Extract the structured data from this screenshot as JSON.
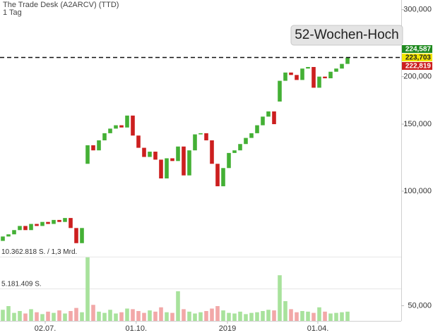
{
  "chart_data": {
    "type": "candlestick",
    "title": "The Trade Desk (A2ARCV) (TTD)",
    "subtitle": "1 Tag",
    "log_scale": true,
    "ylim": [
      45.6,
      318
    ],
    "yticks": [
      {
        "value": 50,
        "label": "50,000"
      },
      {
        "value": 100,
        "label": "100,000"
      },
      {
        "value": 150,
        "label": "150,000"
      },
      {
        "value": 200,
        "label": "200,000"
      },
      {
        "value": 300,
        "label": "300,000"
      }
    ],
    "xlim": [
      0,
      71
    ],
    "xticks": [
      {
        "value": 8,
        "label": "02.07."
      },
      {
        "value": 24.1,
        "label": "01.10."
      },
      {
        "value": 40.25,
        "label": "2019"
      },
      {
        "value": 56.25,
        "label": "01.04."
      }
    ],
    "up_color": "#44b035",
    "down_color": "#cc1f1f",
    "open": [
      74,
      76,
      77,
      79,
      81,
      79,
      82,
      81,
      83,
      82,
      84,
      83,
      85,
      80,
      73,
      118,
      132,
      128,
      136,
      142,
      146,
      149,
      147,
      158,
      140,
      130,
      123,
      127,
      121,
      108,
      122,
      120,
      131,
      110,
      128,
      141,
      142,
      136,
      118,
      103,
      115,
      126,
      128,
      133,
      138,
      142,
      149,
      157,
      162,
      172,
      195,
      205,
      202,
      196,
      210,
      212,
      187,
      200,
      198,
      206,
      210,
      216
    ],
    "close": [
      76,
      77,
      79,
      81,
      79,
      82,
      81,
      83,
      82,
      84,
      83,
      85,
      80,
      73,
      80,
      132,
      128,
      136,
      142,
      146,
      149,
      147,
      158,
      140,
      130,
      123,
      127,
      121,
      108,
      122,
      120,
      131,
      110,
      128,
      141,
      142,
      136,
      118,
      103,
      115,
      126,
      128,
      133,
      138,
      142,
      149,
      157,
      162,
      150,
      195,
      205,
      202,
      196,
      210,
      212,
      187,
      200,
      198,
      206,
      210,
      216,
      224.5
    ],
    "volume": {
      "axis": "y2",
      "up_color": "#a8e29c",
      "down_color": "#f2a8a8",
      "values": [
        1800000,
        2400000,
        1300000,
        1600000,
        1200000,
        1900000,
        1400000,
        1100000,
        1500000,
        1300000,
        1700000,
        1200000,
        1600000,
        2100000,
        1400000,
        10300000,
        2600000,
        1500000,
        1300000,
        1800000,
        1200000,
        1400000,
        2000000,
        1900000,
        1600000,
        1300000,
        1700000,
        1500000,
        2200000,
        1400000,
        1300000,
        4800000,
        1900000,
        1500000,
        1200000,
        1400000,
        1600000,
        2000000,
        2400000,
        1700000,
        1300000,
        1200000,
        1500000,
        1100000,
        1300000,
        1400000,
        1600000,
        1800000,
        1700000,
        7400000,
        3200000,
        1900000,
        1400000,
        1600000,
        1500000,
        1300000,
        2200000,
        1500000,
        1200000,
        1300000,
        1400000,
        1500000
      ]
    },
    "y2lim": [
      0,
      52000000
    ],
    "y2ticks": [
      {
        "value": 10362818,
        "label": "10.362.818 S. / 1,3 Mrd."
      },
      {
        "value": 5181409,
        "label": "5.181.409 S."
      }
    ],
    "annotation": {
      "text": "52-Wochen-Hoch",
      "value": 224.587
    },
    "price_labels": [
      {
        "value": 224.587,
        "label": "224,587",
        "color": "#1f8a1f",
        "text_color": "#ffffff"
      },
      {
        "value": 223.703,
        "label": "223,703",
        "color": "#f2e600",
        "text_color": "#222222"
      },
      {
        "value": 222.819,
        "label": "222,819",
        "color": "#cc1f1f",
        "text_color": "#ffffff"
      }
    ]
  }
}
